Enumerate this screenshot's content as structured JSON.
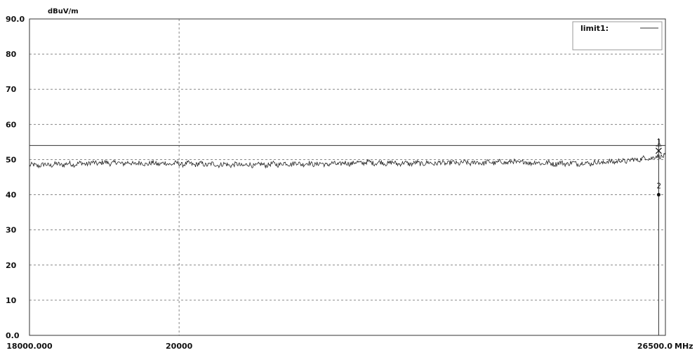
{
  "chart_data": {
    "type": "line",
    "ylabel": "dBuV/m",
    "xunit": "MHz",
    "ylim": [
      0.0,
      90.0
    ],
    "xlim": [
      18000,
      26500
    ],
    "y_tick_labels": [
      "0.0",
      "10",
      "20",
      "30",
      "40",
      "50",
      "60",
      "70",
      "80",
      "90.0"
    ],
    "y_ticks": [
      0,
      10,
      20,
      30,
      40,
      50,
      60,
      70,
      80,
      90
    ],
    "x_tick_labels": [
      "18000.000",
      "20000",
      "26500.0"
    ],
    "x_ticks": [
      18000,
      20000,
      26500
    ],
    "grid": true,
    "legend": {
      "placement": "top-right",
      "entries": [
        "limit1:"
      ]
    },
    "limit_line": {
      "name": "limit1:",
      "value": 54
    },
    "series": [
      {
        "values_x": [
          18000,
          18500,
          19000,
          19500,
          20000,
          20500,
          21000,
          21500,
          22000,
          22500,
          23000,
          23500,
          24000,
          24500,
          25000,
          25500,
          26000,
          26400,
          26500
        ],
        "values_y": [
          48.3,
          48.7,
          49.1,
          48.9,
          48.8,
          48.6,
          48.4,
          48.9,
          48.7,
          49.2,
          48.9,
          49.0,
          49.1,
          49.3,
          48.9,
          49.0,
          49.7,
          50.8,
          51.3
        ]
      }
    ],
    "markers": [
      {
        "label": "1",
        "x": 26410,
        "y": 52.5,
        "symbol": "x"
      },
      {
        "label": "2",
        "x": 26410,
        "y": 40.0,
        "symbol": "dot"
      }
    ]
  }
}
